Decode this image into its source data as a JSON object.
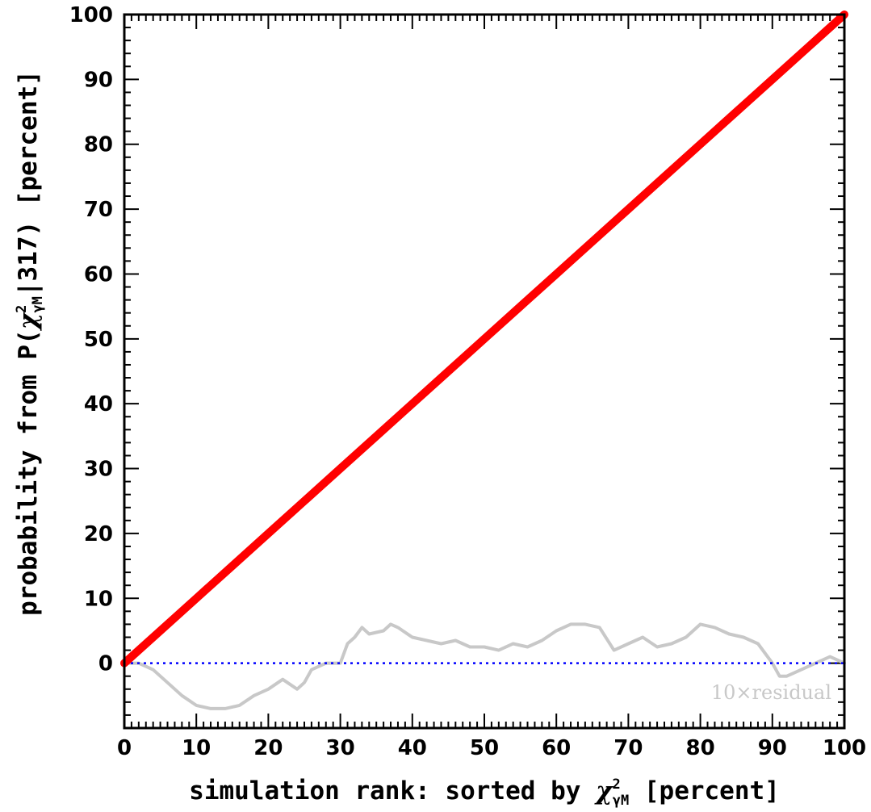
{
  "chart_data": {
    "type": "line",
    "xlabel_parts": [
      "simulation rank: sorted by ",
      "χ",
      "2",
      "γM",
      " [percent]"
    ],
    "ylabel_parts": [
      "probability from P(",
      "χ",
      "2",
      "γM",
      "|317) [percent]"
    ],
    "xlim": [
      0,
      100
    ],
    "ylim": [
      -10,
      100
    ],
    "xticks": [
      0,
      10,
      20,
      30,
      40,
      50,
      60,
      70,
      80,
      90,
      100
    ],
    "yticks": [
      0,
      10,
      20,
      30,
      40,
      50,
      60,
      70,
      80,
      90,
      100
    ],
    "grid": false,
    "series": [
      {
        "color": "#ff0000",
        "x": [
          0,
          5,
          10,
          15,
          20,
          25,
          30,
          35,
          40,
          45,
          50,
          55,
          60,
          65,
          70,
          75,
          80,
          85,
          90,
          95,
          100
        ],
        "values": [
          0,
          5,
          10,
          15,
          20,
          25,
          30,
          35,
          40,
          45,
          50,
          55,
          60,
          65,
          70,
          75,
          80,
          85,
          90,
          95,
          100
        ]
      },
      {
        "color": "#c8c8c8",
        "x": [
          0,
          2,
          4,
          6,
          8,
          10,
          12,
          14,
          16,
          18,
          20,
          22,
          24,
          25,
          26,
          28,
          30,
          31,
          32,
          33,
          34,
          36,
          37,
          38,
          40,
          42,
          44,
          46,
          48,
          50,
          52,
          54,
          56,
          58,
          60,
          62,
          64,
          66,
          68,
          70,
          72,
          74,
          76,
          78,
          80,
          82,
          84,
          86,
          88,
          90,
          91,
          92,
          93,
          94,
          96,
          98,
          100
        ],
        "values": [
          0,
          0,
          -1,
          -3,
          -5,
          -6.5,
          -7,
          -7,
          -6.5,
          -5,
          -4,
          -2.5,
          -4,
          -3,
          -1,
          0,
          0,
          3,
          4,
          5.5,
          4.5,
          5,
          6,
          5.5,
          4,
          3.5,
          3,
          3.5,
          2.5,
          2.5,
          2,
          3,
          2.5,
          3.5,
          5,
          6,
          6,
          5.5,
          2,
          3,
          4,
          2.5,
          3,
          4,
          6,
          5.5,
          4.5,
          4,
          3,
          0,
          -2,
          -2,
          -1.5,
          -1,
          0,
          1,
          0
        ]
      },
      {
        "color": "#0000ff",
        "style": "dotted",
        "x": [
          0,
          100
        ],
        "values": [
          0,
          0
        ]
      }
    ],
    "annotations": [
      {
        "text": "10×residual",
        "color": "#c8c8c8"
      }
    ]
  }
}
